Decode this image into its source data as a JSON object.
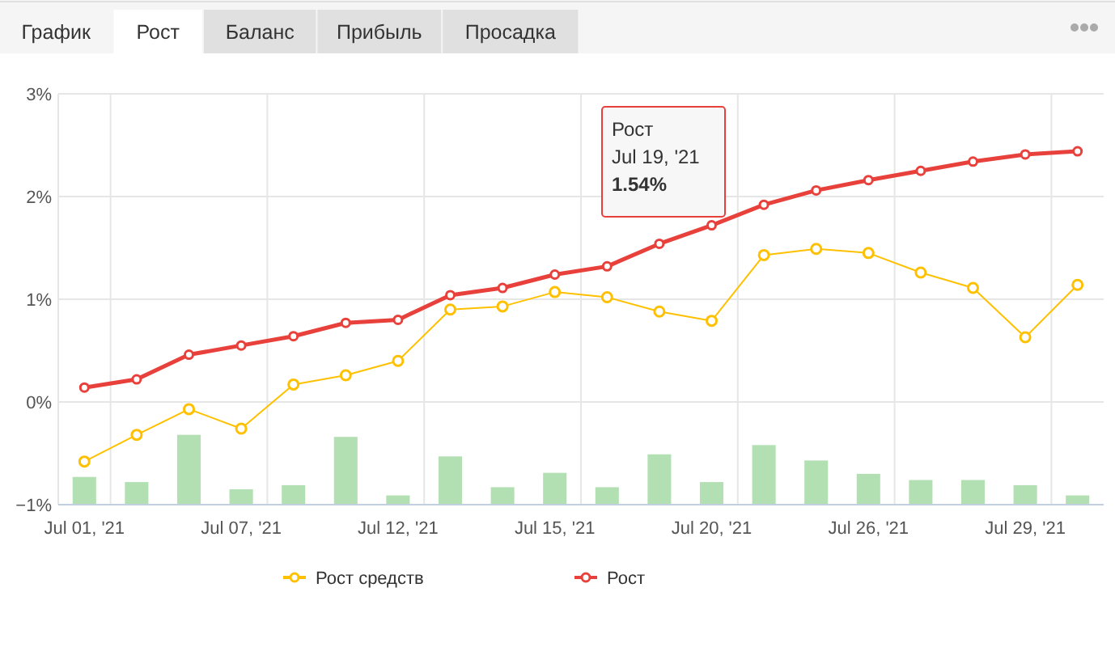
{
  "chart_data": [
    {
      "type": "other",
      "annotations": [
        "График",
        "Рост",
        "Баланс",
        "Прибыль",
        "Просадка"
      ]
    },
    {
      "type": "line",
      "categories": [
        "Jul 01, '21",
        null,
        null,
        "Jul 07, '21",
        null,
        null,
        "Jul 12, '21",
        null,
        null,
        "Jul 15, '21",
        null,
        null,
        "Jul 20, '21",
        null,
        null,
        "Jul 26, '21",
        null,
        null,
        "Jul 29, '21",
        null
      ],
      "series": [
        {
          "type": "bar",
          "color": "#b3e0b3",
          "base": [
            -1,
            -1,
            -1,
            -1,
            -1,
            -1,
            -1,
            -1,
            -1,
            -1,
            -1,
            -1,
            -1,
            -1,
            -1,
            -1,
            -1,
            -1,
            -1,
            -1
          ],
          "values": [
            0.27,
            0.22,
            0.68,
            0.15,
            0.19,
            0.66,
            0.09,
            0.47,
            0.17,
            0.31,
            0.17,
            0.49,
            0.22,
            0.58,
            0.43,
            0.3,
            0.24,
            0.24,
            0.19,
            0.09
          ]
        },
        {
          "name": "Рост средств",
          "color": "#ffc000",
          "values": [
            -0.58,
            -0.32,
            -0.07,
            -0.26,
            0.17,
            0.26,
            0.4,
            0.9,
            0.93,
            1.07,
            1.02,
            0.88,
            0.79,
            1.43,
            1.49,
            1.45,
            1.26,
            1.11,
            0.63,
            1.14
          ]
        },
        {
          "name": "Рост",
          "color": "#e8413c",
          "values": [
            0.14,
            0.22,
            0.46,
            0.55,
            0.64,
            0.77,
            0.8,
            1.04,
            1.11,
            1.24,
            1.32,
            1.54,
            1.72,
            1.92,
            2.06,
            2.16,
            2.25,
            2.34,
            2.41,
            2.44
          ]
        }
      ],
      "ylim": [
        -1,
        3
      ],
      "yticks": [
        {
          "value": -1,
          "label": "−1%"
        },
        {
          "value": 0,
          "label": "0%"
        },
        {
          "value": 1,
          "label": "1%"
        },
        {
          "value": 2,
          "label": "2%"
        },
        {
          "value": 3,
          "label": "3%"
        }
      ],
      "grid": true,
      "legend": "bottom",
      "marker": "circle",
      "line_style": "solid",
      "annotations": [
        "Рост",
        "Jul 19, '21",
        "1.54%"
      ]
    }
  ]
}
